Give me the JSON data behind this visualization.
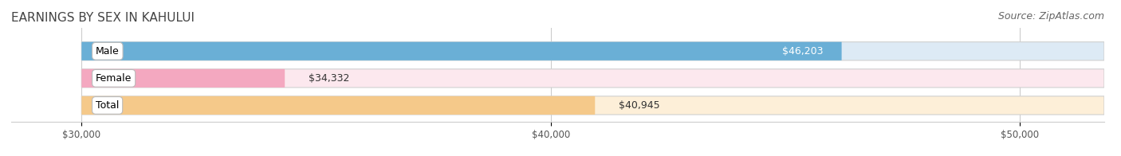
{
  "title": "EARNINGS BY SEX IN KAHULUI",
  "source": "Source: ZipAtlas.com",
  "categories": [
    "Male",
    "Female",
    "Total"
  ],
  "values": [
    46203,
    34332,
    40945
  ],
  "value_labels": [
    "$46,203",
    "$34,332",
    "$40,945"
  ],
  "bar_colors": [
    "#6aafd6",
    "#f4a8c0",
    "#f5c98a"
  ],
  "bar_bg_colors": [
    "#ddeaf5",
    "#fce8ee",
    "#fdefd8"
  ],
  "label_bg_colors": [
    "#5a9fc8",
    "#f08aaa",
    "#f0b060"
  ],
  "xlim_min": 28500,
  "xlim_max": 51800,
  "xstart": 30000,
  "xticks": [
    30000,
    40000,
    50000
  ],
  "xtick_labels": [
    "$30,000",
    "$40,000",
    "$50,000"
  ],
  "background_color": "#ffffff",
  "title_fontsize": 11,
  "source_fontsize": 9,
  "label_fontsize": 9,
  "value_fontsize": 9
}
